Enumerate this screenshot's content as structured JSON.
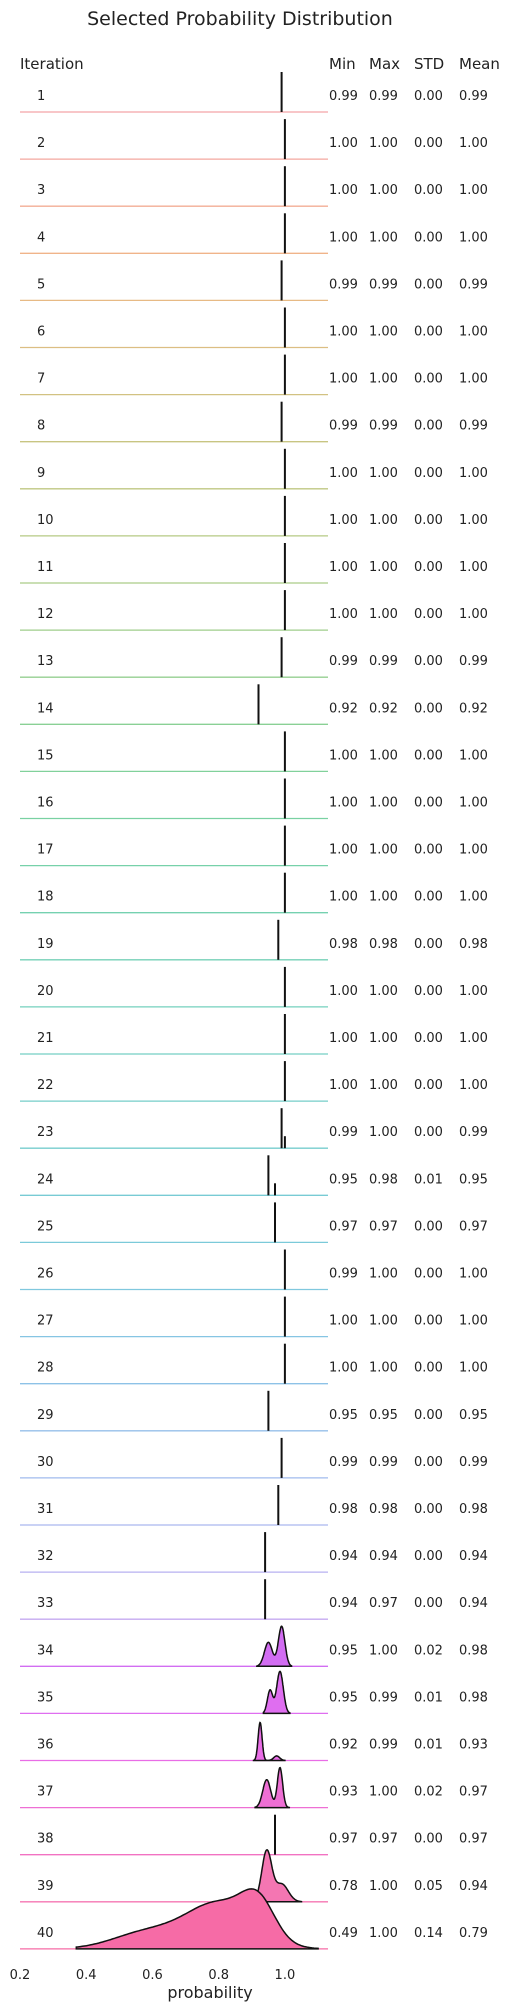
{
  "chart_data": {
    "type": "ridgeline",
    "title": "Selected Probability Distribution",
    "xlabel": "probability",
    "xlim": [
      0.2,
      1.13
    ],
    "xticks": [
      "0.2",
      "0.4",
      "0.6",
      "0.8",
      "1.0"
    ],
    "xtick_values": [
      0.2,
      0.4,
      0.6,
      0.8,
      1.0
    ],
    "grid": false,
    "columns": [
      "Iteration",
      "Min",
      "Max",
      "STD",
      "Mean"
    ],
    "rows": [
      {
        "iteration": "1",
        "min": "0.99",
        "max": "0.99",
        "std": "0.00",
        "mean": "0.99",
        "color": "#f4a3a6",
        "peaks": [
          0.99
        ]
      },
      {
        "iteration": "2",
        "min": "1.00",
        "max": "1.00",
        "std": "0.00",
        "mean": "1.00",
        "color": "#f4a79f",
        "peaks": [
          1.0
        ]
      },
      {
        "iteration": "3",
        "min": "1.00",
        "max": "1.00",
        "std": "0.00",
        "mean": "1.00",
        "color": "#f3ad95",
        "peaks": [
          1.0
        ]
      },
      {
        "iteration": "4",
        "min": "1.00",
        "max": "1.00",
        "std": "0.00",
        "mean": "1.00",
        "color": "#f0b48a",
        "peaks": [
          1.0
        ]
      },
      {
        "iteration": "5",
        "min": "0.99",
        "max": "0.99",
        "std": "0.00",
        "mean": "0.99",
        "color": "#e7ba85",
        "peaks": [
          0.99
        ]
      },
      {
        "iteration": "6",
        "min": "1.00",
        "max": "1.00",
        "std": "0.00",
        "mean": "1.00",
        "color": "#dcbe83",
        "peaks": [
          1.0
        ]
      },
      {
        "iteration": "7",
        "min": "1.00",
        "max": "1.00",
        "std": "0.00",
        "mean": "1.00",
        "color": "#d2c282",
        "peaks": [
          1.0
        ]
      },
      {
        "iteration": "8",
        "min": "0.99",
        "max": "0.99",
        "std": "0.00",
        "mean": "0.99",
        "color": "#c8c582",
        "peaks": [
          0.99
        ]
      },
      {
        "iteration": "9",
        "min": "1.00",
        "max": "1.00",
        "std": "0.00",
        "mean": "1.00",
        "color": "#bfc782",
        "peaks": [
          1.0
        ]
      },
      {
        "iteration": "10",
        "min": "1.00",
        "max": "1.00",
        "std": "0.00",
        "mean": "1.00",
        "color": "#b5ca84",
        "peaks": [
          1.0
        ]
      },
      {
        "iteration": "11",
        "min": "1.00",
        "max": "1.00",
        "std": "0.00",
        "mean": "1.00",
        "color": "#aacc87",
        "peaks": [
          1.0
        ]
      },
      {
        "iteration": "12",
        "min": "1.00",
        "max": "1.00",
        "std": "0.00",
        "mean": "1.00",
        "color": "#9fce8b",
        "peaks": [
          1.0
        ]
      },
      {
        "iteration": "13",
        "min": "0.99",
        "max": "0.99",
        "std": "0.00",
        "mean": "0.99",
        "color": "#94cf90",
        "peaks": [
          0.99
        ]
      },
      {
        "iteration": "14",
        "min": "0.92",
        "max": "0.92",
        "std": "0.00",
        "mean": "0.92",
        "color": "#8ad095",
        "peaks": [
          0.92
        ]
      },
      {
        "iteration": "15",
        "min": "1.00",
        "max": "1.00",
        "std": "0.00",
        "mean": "1.00",
        "color": "#81d19b",
        "peaks": [
          1.0
        ]
      },
      {
        "iteration": "16",
        "min": "1.00",
        "max": "1.00",
        "std": "0.00",
        "mean": "1.00",
        "color": "#7ad1a2",
        "peaks": [
          1.0
        ]
      },
      {
        "iteration": "17",
        "min": "1.00",
        "max": "1.00",
        "std": "0.00",
        "mean": "1.00",
        "color": "#77d1a9",
        "peaks": [
          1.0
        ]
      },
      {
        "iteration": "18",
        "min": "1.00",
        "max": "1.00",
        "std": "0.00",
        "mean": "1.00",
        "color": "#75d1b0",
        "peaks": [
          1.0
        ]
      },
      {
        "iteration": "19",
        "min": "0.98",
        "max": "0.98",
        "std": "0.00",
        "mean": "0.98",
        "color": "#74d1b7",
        "peaks": [
          0.98
        ]
      },
      {
        "iteration": "20",
        "min": "1.00",
        "max": "1.00",
        "std": "0.00",
        "mean": "1.00",
        "color": "#74d0bd",
        "peaks": [
          1.0
        ]
      },
      {
        "iteration": "21",
        "min": "1.00",
        "max": "1.00",
        "std": "0.00",
        "mean": "1.00",
        "color": "#74cfc3",
        "peaks": [
          1.0
        ]
      },
      {
        "iteration": "22",
        "min": "1.00",
        "max": "1.00",
        "std": "0.00",
        "mean": "1.00",
        "color": "#75cec9",
        "peaks": [
          1.0
        ]
      },
      {
        "iteration": "23",
        "min": "0.99",
        "max": "1.00",
        "std": "0.00",
        "mean": "0.99",
        "color": "#76cdce",
        "peaks": [
          0.99,
          1.0
        ]
      },
      {
        "iteration": "24",
        "min": "0.95",
        "max": "0.98",
        "std": "0.01",
        "mean": "0.95",
        "color": "#78cbd4",
        "peaks": [
          0.95,
          0.97
        ]
      },
      {
        "iteration": "25",
        "min": "0.97",
        "max": "0.97",
        "std": "0.00",
        "mean": "0.97",
        "color": "#7bcad9",
        "peaks": [
          0.97
        ]
      },
      {
        "iteration": "26",
        "min": "0.99",
        "max": "1.00",
        "std": "0.00",
        "mean": "1.00",
        "color": "#80c8de",
        "peaks": [
          1.0
        ]
      },
      {
        "iteration": "27",
        "min": "1.00",
        "max": "1.00",
        "std": "0.00",
        "mean": "1.00",
        "color": "#86c5e3",
        "peaks": [
          1.0
        ]
      },
      {
        "iteration": "28",
        "min": "1.00",
        "max": "1.00",
        "std": "0.00",
        "mean": "1.00",
        "color": "#8dc2e7",
        "peaks": [
          1.0
        ]
      },
      {
        "iteration": "29",
        "min": "0.95",
        "max": "0.95",
        "std": "0.00",
        "mean": "0.95",
        "color": "#96bfea",
        "peaks": [
          0.95
        ]
      },
      {
        "iteration": "30",
        "min": "0.99",
        "max": "0.99",
        "std": "0.00",
        "mean": "0.99",
        "color": "#a0bbed",
        "peaks": [
          0.99
        ]
      },
      {
        "iteration": "31",
        "min": "0.98",
        "max": "0.98",
        "std": "0.00",
        "mean": "0.98",
        "color": "#abb6ef",
        "peaks": [
          0.98
        ]
      },
      {
        "iteration": "32",
        "min": "0.94",
        "max": "0.94",
        "std": "0.00",
        "mean": "0.94",
        "color": "#b7b1f0",
        "peaks": [
          0.94
        ]
      },
      {
        "iteration": "33",
        "min": "0.94",
        "max": "0.97",
        "std": "0.00",
        "mean": "0.94",
        "color": "#c5aaf1",
        "peaks": [
          0.94
        ]
      },
      {
        "iteration": "34",
        "min": "0.95",
        "max": "1.00",
        "std": "0.02",
        "mean": "0.98",
        "color": "#d26df2",
        "peaks": [
          0.96,
          0.99
        ]
      },
      {
        "iteration": "35",
        "min": "0.95",
        "max": "0.99",
        "std": "0.01",
        "mean": "0.98",
        "color": "#df6ef0",
        "peaks": [
          0.98
        ]
      },
      {
        "iteration": "36",
        "min": "0.92",
        "max": "0.99",
        "std": "0.01",
        "mean": "0.93",
        "color": "#e96de6",
        "peaks": [
          0.93,
          0.98
        ]
      },
      {
        "iteration": "37",
        "min": "0.93",
        "max": "1.00",
        "std": "0.02",
        "mean": "0.97",
        "color": "#ee6fd4",
        "peaks": [
          0.95,
          0.99
        ]
      },
      {
        "iteration": "38",
        "min": "0.97",
        "max": "0.97",
        "std": "0.00",
        "mean": "0.97",
        "color": "#f272c2",
        "peaks": [
          0.97
        ]
      },
      {
        "iteration": "39",
        "min": "0.78",
        "max": "1.00",
        "std": "0.05",
        "mean": "0.94",
        "color": "#f476b2",
        "peaks": [
          0.95
        ]
      },
      {
        "iteration": "40",
        "min": "0.49",
        "max": "1.00",
        "std": "0.14",
        "mean": "0.79",
        "color": "#f66ba6",
        "peaks": [
          0.88
        ]
      }
    ]
  }
}
